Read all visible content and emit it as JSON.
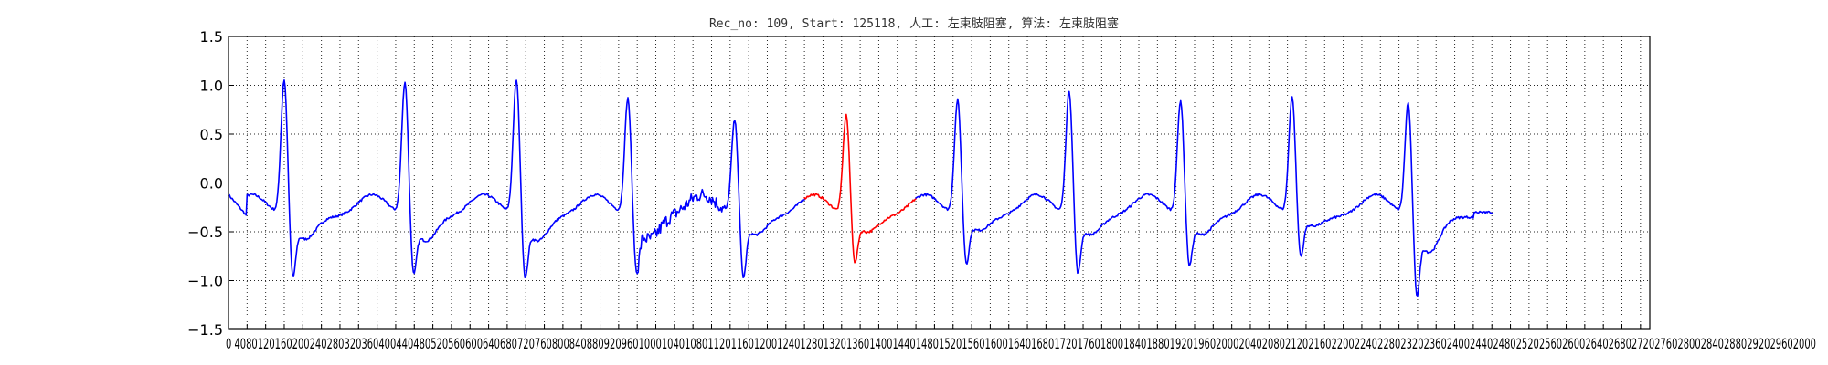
{
  "chart_data": {
    "type": "line",
    "title": "Rec_no: 109, Start: 125118, 人工: 左束肢阻塞, 算法: 左束肢阻塞",
    "xlabel": "",
    "ylabel": "",
    "xlim": [
      0,
      3000
    ],
    "ylim": [
      -1.5,
      1.5
    ],
    "grid": true,
    "x_tick_step": 40,
    "x_tick_labels_text": "0 4080120160200240280320360400440480520560600640680720760800840880920960100010401080112011601200124012801320136014001440148015201560160016401680172017601800184018801920196020002040208021202160220022402280232023602400244024802520256026002640268027202760280028402880292029602000",
    "y_ticks": [
      -1.5,
      -1.0,
      -0.5,
      0.0,
      0.5,
      1.0,
      1.5
    ],
    "y_tick_labels": [
      "−1.5",
      "−1.0",
      "−0.5",
      "0.0",
      "0.5",
      "1.0",
      "1.5"
    ],
    "colors": {
      "signal": "#0000ff",
      "highlight": "#ff0000"
    },
    "highlight_range": [
      1240,
      1480
    ],
    "series": [
      {
        "beats": [
          {
            "r": 120,
            "p": 1.07,
            "s": -0.9,
            "t": -0.6
          },
          {
            "r": 380,
            "p": 1.05,
            "s": -0.86,
            "t": -0.62
          },
          {
            "r": 620,
            "p": 1.07,
            "s": -0.9,
            "t": -0.62
          },
          {
            "r": 860,
            "p": 0.88,
            "s": -0.85,
            "t": -0.6
          },
          {
            "r": 1090,
            "p": 0.65,
            "s": -0.92,
            "t": -0.55
          },
          {
            "r": 1330,
            "p": 0.7,
            "s": -0.78,
            "t": -0.52
          },
          {
            "r": 1570,
            "p": 0.85,
            "s": -0.8,
            "t": -0.5
          },
          {
            "r": 1810,
            "p": 0.95,
            "s": -0.88,
            "t": -0.55
          },
          {
            "r": 2050,
            "p": 0.85,
            "s": -0.8,
            "t": -0.55
          },
          {
            "r": 2290,
            "p": 0.88,
            "s": -0.75,
            "t": -0.45
          },
          {
            "r": 2540,
            "p": 0.85,
            "s": -1.02,
            "t": -0.75
          }
        ],
        "baseline": -0.35,
        "t_wave_peak": -0.12,
        "end_x": 2720,
        "end_y": -0.3
      }
    ]
  }
}
